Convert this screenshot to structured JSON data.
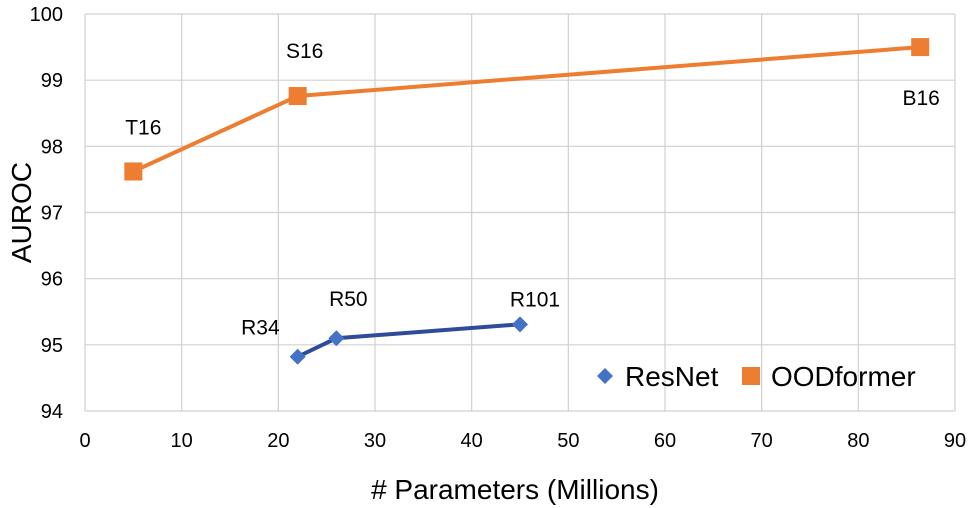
{
  "chart_data": {
    "type": "line",
    "xlabel": "# Parameters (Millions)",
    "ylabel": "AUROC",
    "xlim": [
      0,
      90
    ],
    "ylim": [
      94,
      100
    ],
    "xticks": [
      0,
      10,
      20,
      30,
      40,
      50,
      60,
      70,
      80,
      90
    ],
    "yticks": [
      94,
      95,
      96,
      97,
      98,
      99,
      100
    ],
    "grid": true,
    "legend_position": "bottom-right",
    "series": [
      {
        "name": "ResNet",
        "marker": "diamond",
        "color": "#4472C4",
        "line_color": "#2F4B9A",
        "points": [
          {
            "label": "R34",
            "x": 22,
            "y": 94.82
          },
          {
            "label": "R50",
            "x": 26,
            "y": 95.1
          },
          {
            "label": "R101",
            "x": 45,
            "y": 95.31
          }
        ]
      },
      {
        "name": "OODformer",
        "marker": "square",
        "color": "#ED7D31",
        "line_color": "#ED7D31",
        "points": [
          {
            "label": "T16",
            "x": 5,
            "y": 97.62
          },
          {
            "label": "S16",
            "x": 22,
            "y": 98.76
          },
          {
            "label": "B16",
            "x": 86.4,
            "y": 99.5
          }
        ]
      }
    ]
  }
}
